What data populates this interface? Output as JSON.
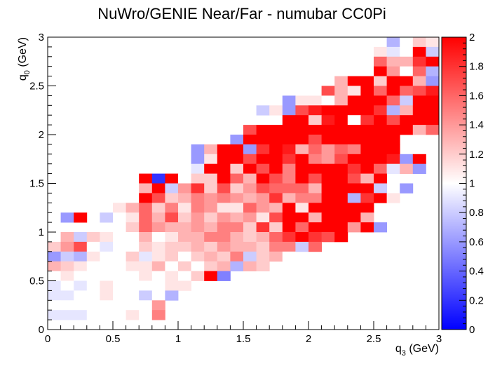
{
  "chart_data": {
    "type": "heatmap",
    "title": "NuWro/GENIE Near/Far - numubar CC0Pi",
    "xlabel_main": "q",
    "xlabel_sub": "3",
    "xlabel_unit": " (GeV)",
    "ylabel_main": "q",
    "ylabel_sub": "0",
    "ylabel_unit": " (GeV)",
    "xlim": [
      0,
      3
    ],
    "ylim": [
      0,
      3
    ],
    "zlim": [
      0,
      2
    ],
    "nbins_x": 30,
    "nbins_y": 30,
    "x_ticks": [
      0,
      0.5,
      1,
      1.5,
      2,
      2.5,
      3
    ],
    "x_tick_labels": [
      "0",
      "0.5",
      "1",
      "1.5",
      "2",
      "2.5",
      "3"
    ],
    "y_ticks": [
      0,
      0.5,
      1,
      1.5,
      2,
      2.5,
      3
    ],
    "y_tick_labels": [
      "0",
      "0.5",
      "1",
      "1.5",
      "2",
      "2.5",
      "3"
    ],
    "z_ticks": [
      0,
      0.2,
      0.4,
      0.6,
      0.8,
      1,
      1.2,
      1.4,
      1.6,
      1.8,
      2
    ],
    "z_tick_labels": [
      "0",
      "0.2",
      "0.4",
      "0.6",
      "0.8",
      "1",
      "1.2",
      "1.4",
      "1.6",
      "1.8",
      "2"
    ],
    "grid": false,
    "colorbar": "right",
    "colormap": [
      "#0000ff",
      "#ffffff",
      "#ff0000"
    ],
    "z_rows_from_top": [
      [
        null,
        null,
        null,
        null,
        null,
        null,
        null,
        null,
        null,
        null,
        null,
        null,
        null,
        null,
        null,
        null,
        null,
        null,
        null,
        null,
        null,
        null,
        null,
        null,
        null,
        null,
        0.7,
        1.0,
        1.2,
        1.1
      ],
      [
        null,
        null,
        null,
        null,
        null,
        null,
        null,
        null,
        null,
        null,
        null,
        null,
        null,
        null,
        null,
        null,
        null,
        null,
        null,
        null,
        null,
        null,
        null,
        null,
        null,
        1.1,
        0.9,
        1.0,
        2.0,
        0.8
      ],
      [
        null,
        null,
        null,
        null,
        null,
        null,
        null,
        null,
        null,
        null,
        null,
        null,
        null,
        null,
        null,
        null,
        null,
        null,
        null,
        null,
        null,
        null,
        null,
        null,
        null,
        1.6,
        1.3,
        1.3,
        1.8,
        2.0
      ],
      [
        null,
        null,
        null,
        null,
        null,
        null,
        null,
        null,
        null,
        null,
        null,
        null,
        null,
        null,
        null,
        null,
        null,
        null,
        null,
        null,
        null,
        null,
        null,
        null,
        null,
        2.0,
        1.4,
        1.0,
        1.6,
        0.7
      ],
      [
        null,
        null,
        null,
        null,
        null,
        null,
        null,
        null,
        null,
        null,
        null,
        null,
        null,
        null,
        null,
        null,
        null,
        null,
        null,
        null,
        null,
        null,
        1.3,
        2.0,
        2.0,
        1.2,
        2.0,
        2.0,
        1.3,
        0.6
      ],
      [
        null,
        null,
        null,
        null,
        null,
        null,
        null,
        null,
        null,
        null,
        null,
        null,
        null,
        null,
        null,
        null,
        null,
        null,
        null,
        null,
        null,
        1.7,
        1.3,
        1.1,
        2.0,
        1.6,
        2.0,
        1.6,
        1.7,
        1.9
      ],
      [
        null,
        null,
        null,
        null,
        null,
        null,
        null,
        null,
        null,
        null,
        null,
        null,
        null,
        null,
        null,
        null,
        null,
        null,
        0.6,
        1.1,
        1.1,
        1.0,
        1.3,
        2.0,
        2.0,
        2.0,
        1.6,
        0.8,
        2.0,
        2.0
      ],
      [
        null,
        null,
        null,
        null,
        null,
        null,
        null,
        null,
        null,
        null,
        null,
        null,
        null,
        null,
        null,
        null,
        0.8,
        1.1,
        0.6,
        1.7,
        1.9,
        2.0,
        2.0,
        2.0,
        2.0,
        1.8,
        0.7,
        1.3,
        2.0,
        2.0
      ],
      [
        null,
        null,
        null,
        null,
        null,
        null,
        null,
        null,
        null,
        null,
        null,
        null,
        null,
        null,
        null,
        null,
        null,
        null,
        2.0,
        2.0,
        1.2,
        1.9,
        2.0,
        1.0,
        1.8,
        2.0,
        1.7,
        2.0,
        2.0,
        2.0
      ],
      [
        null,
        null,
        null,
        null,
        null,
        null,
        null,
        null,
        null,
        null,
        null,
        null,
        null,
        null,
        null,
        1.7,
        2.0,
        2.0,
        2.0,
        2.0,
        2.0,
        2.0,
        2.0,
        2.0,
        2.0,
        2.0,
        2.0,
        2.0,
        1.3,
        1.6
      ],
      [
        null,
        null,
        null,
        null,
        null,
        null,
        null,
        null,
        null,
        null,
        null,
        null,
        null,
        null,
        0.6,
        2.0,
        2.0,
        2.0,
        2.0,
        2.0,
        1.7,
        2.0,
        2.0,
        2.0,
        2.0,
        2.0,
        2.0,
        null,
        null,
        null
      ],
      [
        null,
        null,
        null,
        null,
        null,
        null,
        null,
        null,
        null,
        null,
        null,
        0.6,
        1.3,
        2.0,
        2.0,
        0.6,
        1.8,
        2.0,
        1.9,
        1.3,
        1.6,
        1.4,
        1.6,
        1.5,
        2.0,
        2.0,
        2.0,
        null,
        null,
        null
      ],
      [
        null,
        null,
        null,
        null,
        null,
        null,
        null,
        null,
        null,
        null,
        null,
        0.6,
        1.1,
        2.0,
        2.0,
        1.7,
        2.0,
        2.0,
        1.8,
        2.0,
        1.5,
        1.4,
        1.7,
        2.0,
        2.0,
        2.0,
        1.9,
        0.6,
        2.0,
        null
      ],
      [
        null,
        null,
        null,
        null,
        null,
        null,
        null,
        null,
        null,
        null,
        null,
        0.9,
        2.0,
        2.0,
        1.2,
        2.0,
        1.7,
        2.0,
        1.5,
        2.0,
        2.0,
        2.0,
        2.0,
        1.8,
        2.0,
        1.6,
        0.9,
        1.3,
        0.6,
        null
      ],
      [
        null,
        null,
        null,
        null,
        null,
        null,
        null,
        2.0,
        0.2,
        2.0,
        1.0,
        1.2,
        1.2,
        2.0,
        1.6,
        1.3,
        2.0,
        1.7,
        1.5,
        2.0,
        1.7,
        2.0,
        2.0,
        1.7,
        1.3,
        2.0,
        null,
        null,
        null,
        null
      ],
      [
        null,
        null,
        null,
        null,
        null,
        null,
        1.0,
        1.3,
        2.0,
        0.8,
        1.4,
        1.8,
        1.2,
        1.7,
        1.2,
        1.4,
        1.7,
        1.6,
        1.6,
        1.6,
        1.3,
        2.0,
        2.0,
        2.0,
        2.0,
        0.8,
        null,
        0.6,
        null,
        null
      ],
      [
        null,
        null,
        null,
        null,
        null,
        null,
        null,
        2.0,
        1.7,
        1.2,
        1.3,
        1.5,
        1.4,
        1.5,
        1.4,
        1.3,
        1.4,
        1.8,
        1.3,
        1.5,
        1.5,
        2.0,
        2.0,
        0.7,
        1.8,
        2.0,
        1.1,
        null,
        null,
        null
      ],
      [
        null,
        null,
        null,
        null,
        null,
        1.1,
        1.3,
        1.6,
        1.2,
        1.5,
        1.1,
        1.5,
        1.4,
        1.1,
        1.1,
        1.6,
        1.4,
        1.3,
        2.0,
        1.1,
        2.0,
        2.0,
        2.0,
        2.0,
        2.0,
        null,
        null,
        null,
        null,
        null
      ],
      [
        null,
        0.6,
        2.0,
        null,
        0.8,
        1.0,
        1.1,
        1.6,
        1.3,
        1.7,
        1.2,
        1.4,
        1.2,
        1.4,
        1.3,
        1.4,
        1.1,
        1.7,
        2.0,
        2.0,
        1.3,
        2.0,
        2.0,
        2.0,
        1.3,
        null,
        null,
        null,
        null,
        null
      ],
      [
        null,
        null,
        null,
        null,
        null,
        null,
        1.2,
        1.6,
        1.4,
        1.3,
        1.3,
        1.4,
        1.3,
        1.5,
        1.5,
        1.2,
        1.8,
        1.2,
        2.0,
        1.6,
        2.0,
        2.0,
        2.0,
        1.4,
        2.0,
        0.6,
        null,
        null,
        null,
        null
      ],
      [
        null,
        1.3,
        0.8,
        1.2,
        1.1,
        1.0,
        1.0,
        1.3,
        1.0,
        1.1,
        1.3,
        1.3,
        1.5,
        1.5,
        1.3,
        1.2,
        1.3,
        1.6,
        1.8,
        2.0,
        1.8,
        1.7,
        2.0,
        null,
        null,
        null,
        null,
        null,
        null,
        null
      ],
      [
        1.2,
        1.4,
        1.7,
        1.0,
        0.9,
        1.0,
        1.0,
        1.2,
        1.1,
        1.2,
        1.2,
        1.3,
        1.2,
        1.4,
        1.3,
        1.3,
        1.2,
        1.5,
        1.5,
        0.8,
        1.6,
        null,
        null,
        null,
        null,
        null,
        null,
        null,
        null,
        null
      ],
      [
        0.6,
        0.8,
        0.7,
        1.1,
        1.0,
        1.0,
        1.2,
        0.9,
        1.1,
        1.2,
        1.0,
        1.2,
        1.3,
        1.2,
        1.5,
        0.8,
        1.2,
        1.3,
        1.0,
        null,
        null,
        null,
        null,
        null,
        null,
        null,
        null,
        null,
        null,
        null
      ],
      [
        1.3,
        1.2,
        1.1,
        1.0,
        1.0,
        1.0,
        1.1,
        1.1,
        1.3,
        1.0,
        1.2,
        1.0,
        1.2,
        1.3,
        0.7,
        1.3,
        1.2,
        null,
        null,
        null,
        null,
        null,
        null,
        null,
        null,
        null,
        null,
        null,
        null,
        null
      ],
      [
        1.0,
        1.1,
        1.0,
        1.0,
        1.0,
        1.0,
        1.0,
        1.1,
        1.0,
        1.1,
        1.0,
        1.2,
        2.0,
        0.5,
        null,
        null,
        null,
        null,
        null,
        null,
        null,
        null,
        null,
        null,
        null,
        null,
        null,
        null,
        null,
        null
      ],
      [
        0.9,
        1.0,
        0.9,
        1.0,
        1.1,
        1.0,
        1.0,
        1.0,
        1.0,
        1.1,
        1.1,
        null,
        null,
        null,
        null,
        null,
        null,
        null,
        null,
        null,
        null,
        null,
        null,
        null,
        null,
        null,
        null,
        null,
        null,
        null
      ],
      [
        0.9,
        0.9,
        1.0,
        1.0,
        1.1,
        1.0,
        1.0,
        0.8,
        1.0,
        0.7,
        null,
        null,
        null,
        null,
        null,
        null,
        null,
        null,
        null,
        null,
        null,
        null,
        null,
        null,
        null,
        null,
        null,
        null,
        null,
        null
      ],
      [
        1.0,
        1.0,
        1.0,
        1.0,
        1.0,
        1.0,
        1.0,
        1.0,
        1.4,
        null,
        null,
        null,
        null,
        null,
        null,
        null,
        null,
        null,
        null,
        null,
        null,
        null,
        null,
        null,
        null,
        null,
        null,
        null,
        null,
        null
      ],
      [
        0.9,
        0.9,
        0.9,
        1.0,
        1.0,
        1.0,
        1.1,
        1.0,
        1.5,
        null,
        null,
        null,
        null,
        null,
        null,
        null,
        null,
        null,
        null,
        null,
        null,
        null,
        null,
        null,
        null,
        null,
        null,
        null,
        null,
        null
      ],
      [
        null,
        null,
        null,
        null,
        null,
        null,
        null,
        null,
        null,
        null,
        null,
        null,
        null,
        null,
        null,
        null,
        null,
        null,
        null,
        null,
        null,
        null,
        null,
        null,
        null,
        null,
        null,
        null,
        null,
        null
      ]
    ]
  }
}
